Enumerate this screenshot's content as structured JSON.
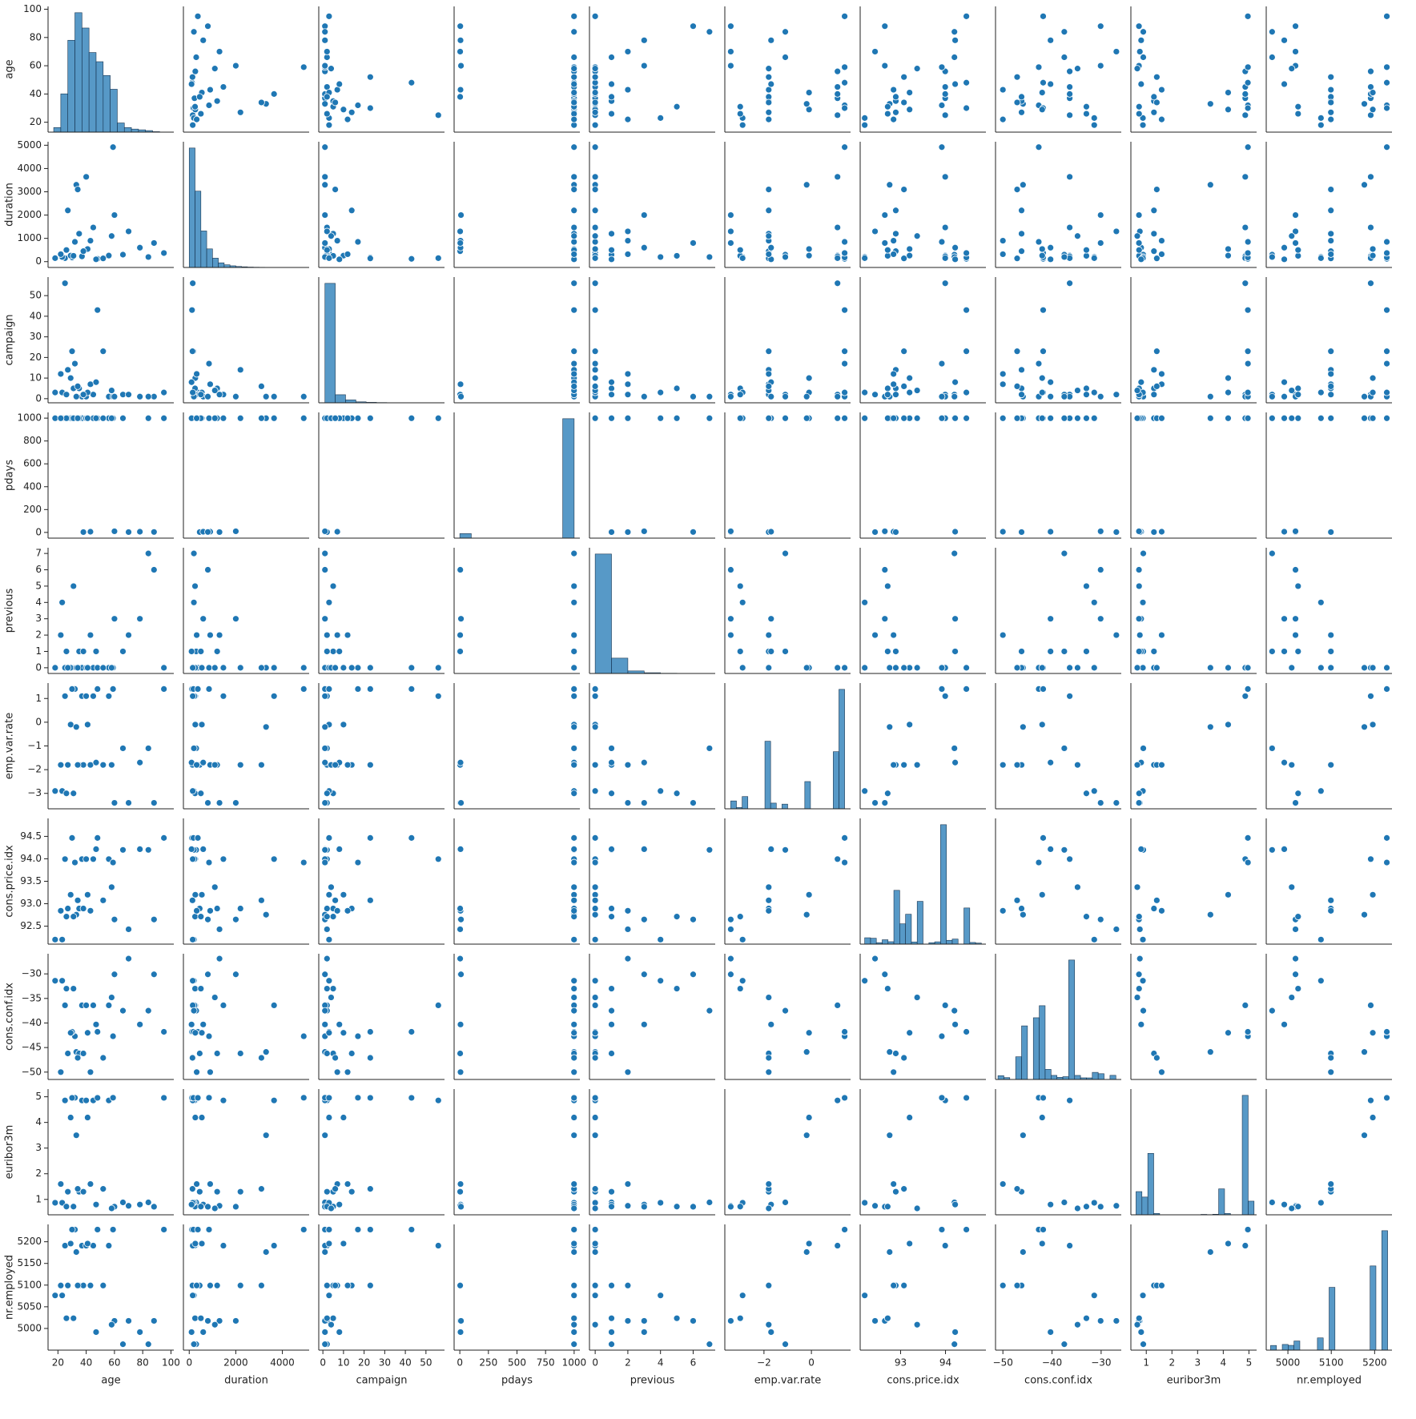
{
  "chart_data": {
    "type": "pairplot",
    "color": "#1f77b4",
    "variables": [
      {
        "name": "age",
        "lim": [
          13,
          102
        ],
        "xticks": [
          20,
          40,
          60,
          80,
          100
        ],
        "yticks": [
          20,
          40,
          60,
          80,
          100
        ],
        "hist": {
          "bins": [
            17,
            22,
            27,
            32,
            37,
            42,
            47,
            52,
            57,
            62,
            67,
            72,
            77,
            82,
            87,
            92,
            98
          ],
          "counts": [
            300,
            2500,
            6000,
            7800,
            6800,
            5200,
            4600,
            3700,
            2800,
            600,
            300,
            200,
            150,
            100,
            30,
            10
          ]
        }
      },
      {
        "name": "duration",
        "lim": [
          -250,
          5150
        ],
        "xticks": [
          0,
          2000,
          4000
        ],
        "yticks": [
          0,
          1000,
          2000,
          3000,
          4000,
          5000
        ],
        "hist": {
          "bins": [
            0,
            250,
            500,
            750,
            1000,
            1250,
            1500,
            1750,
            2000,
            2250,
            2500,
            2750,
            3000,
            3250,
            3500,
            3750,
            4000,
            4250,
            4500,
            4750,
            5000
          ],
          "counts": [
            18000,
            11500,
            5500,
            2800,
            1400,
            700,
            400,
            250,
            150,
            100,
            60,
            40,
            30,
            20,
            15,
            10,
            5,
            3,
            2,
            1
          ]
        }
      },
      {
        "name": "campaign",
        "lim": [
          -2,
          59
        ],
        "xticks": [
          0,
          10,
          20,
          30,
          40,
          50
        ],
        "yticks": [
          0,
          10,
          20,
          30,
          40,
          50
        ],
        "hist": {
          "bins": [
            1,
            6,
            11,
            16,
            21,
            26,
            31,
            36,
            41,
            46,
            51,
            56
          ],
          "counts": [
            37000,
            2500,
            900,
            300,
            150,
            80,
            40,
            10,
            5,
            3,
            2
          ]
        }
      },
      {
        "name": "pdays",
        "lim": [
          -50,
          1050
        ],
        "xticks": [
          0,
          250,
          500,
          750,
          1000
        ],
        "yticks": [
          0,
          200,
          400,
          600,
          800,
          1000
        ],
        "hist": {
          "bins": [
            0,
            100,
            200,
            300,
            400,
            500,
            600,
            700,
            800,
            900,
            1000
          ],
          "counts": [
            1500,
            0,
            0,
            0,
            0,
            0,
            0,
            0,
            0,
            39673
          ]
        }
      },
      {
        "name": "previous",
        "lim": [
          -0.35,
          7.35
        ],
        "xticks": [
          0,
          2,
          4,
          6
        ],
        "yticks": [
          0,
          1,
          2,
          3,
          4,
          5,
          6,
          7
        ],
        "hist": {
          "bins": [
            0,
            1,
            2,
            3,
            4,
            5,
            6,
            7
          ],
          "counts": [
            35563,
            4561,
            754,
            216,
            70,
            18,
            6
          ]
        }
      },
      {
        "name": "emp.var.rate",
        "lim": [
          -3.65,
          1.65
        ],
        "xticks": [
          {
            "value": -2,
            "label": "−2"
          },
          0
        ],
        "yticks": [
          {
            "value": -3,
            "label": "−3"
          },
          {
            "value": -2,
            "label": "−2"
          },
          {
            "value": -1,
            "label": "−1"
          },
          0,
          1
        ],
        "hist": {
          "bins": [
            -3.4,
            -3.16,
            -2.92,
            -2.68,
            -2.44,
            -2.2,
            -1.96,
            -1.72,
            -1.48,
            -1.24,
            -1.0,
            -0.76,
            -0.52,
            -0.28,
            -0.04,
            0.2,
            0.44,
            0.68,
            0.92,
            1.16,
            1.4
          ],
          "counts": [
            1071,
            172,
            1663,
            0,
            0,
            0,
            9184,
            773,
            0,
            635,
            0,
            0,
            0,
            3703,
            0,
            0,
            0,
            0,
            7763,
            16234
          ]
        }
      },
      {
        "name": "cons.price.idx",
        "lim": [
          92.1,
          94.9
        ],
        "xticks": [
          93,
          94
        ],
        "yticks": [
          92.5,
          {
            "value": 93,
            "label": "93.0"
          },
          93.5,
          {
            "value": 94,
            "label": "94.0"
          },
          94.5
        ],
        "hist": {
          "bins": [
            92.2,
            92.33,
            92.46,
            92.59,
            92.72,
            92.85,
            92.98,
            93.11,
            93.24,
            93.37,
            93.5,
            93.63,
            93.76,
            93.89,
            94.02,
            94.15,
            94.28,
            94.41,
            94.54,
            94.67,
            94.8
          ],
          "counts": [
            770,
            714,
            178,
            529,
            292,
            6509,
            2458,
            3616,
            264,
            5175,
            0,
            174,
            279,
            14448,
            462,
            614,
            0,
            4374,
            204,
            128
          ]
        }
      },
      {
        "name": "cons.conf.idx",
        "lim": [
          -51.5,
          -25.9
        ],
        "xticks": [
          {
            "value": -50,
            "label": "−50"
          },
          {
            "value": -40,
            "label": "−40"
          },
          {
            "value": -30,
            "label": "−30"
          }
        ],
        "yticks": [
          {
            "value": -50,
            "label": "−50"
          },
          {
            "value": -45,
            "label": "−45"
          },
          {
            "value": -40,
            "label": "−40"
          },
          {
            "value": -35,
            "label": "−35"
          },
          {
            "value": -30,
            "label": "−30"
          }
        ],
        "hist": {
          "bins": [
            -51,
            -49.8,
            -48.6,
            -47.4,
            -46.2,
            -45,
            -43.8,
            -42.6,
            -41.4,
            -40.2,
            -39,
            -37.8,
            -36.6,
            -35.4,
            -34.2,
            -33,
            -31.8,
            -30.6,
            -29.4,
            -28.2,
            -27
          ],
          "counts": [
            410,
            204,
            0,
            2458,
            5804,
            0,
            6685,
            7990,
            1093,
            441,
            233,
            303,
            12938,
            438,
            178,
            172,
            770,
            624,
            0,
            447
          ]
        }
      },
      {
        "name": "euribor3m",
        "lim": [
          0.4,
          5.3
        ],
        "xticks": [
          1,
          2,
          3,
          4,
          5
        ],
        "yticks": [
          1,
          2,
          3,
          4,
          5
        ],
        "hist": {
          "bins": [
            0.6,
            0.83,
            1.06,
            1.29,
            1.52,
            1.75,
            1.98,
            2.21,
            2.44,
            2.67,
            2.9,
            3.13,
            3.36,
            3.59,
            3.82,
            4.05,
            4.28,
            4.51,
            4.74,
            4.97,
            5.2
          ],
          "counts": [
            3400,
            2600,
            9000,
            200,
            0,
            0,
            0,
            0,
            0,
            0,
            0,
            60,
            30,
            80,
            3800,
            200,
            0,
            0,
            17500,
            2000
          ]
        }
      },
      {
        "name": "nr.employed",
        "lim": [
          4950,
          5240
        ],
        "xticks": [
          5000,
          5100,
          5200
        ],
        "yticks": [
          5000,
          5050,
          5100,
          5150,
          5200
        ],
        "hist": {
          "bins": [
            4960,
            4973.5,
            4987,
            5000.5,
            5014,
            5027.5,
            5041,
            5054.5,
            5068,
            5081.5,
            5095,
            5108.5,
            5122,
            5135.5,
            5149,
            5162.5,
            5176,
            5189.5,
            5203,
            5216.5,
            5230
          ],
          "counts": [
            635,
            0,
            773,
            650,
            1243,
            0,
            0,
            0,
            1663,
            0,
            8534,
            0,
            0,
            0,
            0,
            0,
            10,
            11446,
            0,
            16234
          ]
        }
      }
    ],
    "rows": [
      [
        56,
        261,
        1,
        999,
        0,
        1.1,
        93.994,
        -36.4,
        4.857,
        5191
      ],
      [
        37,
        226,
        1,
        999,
        0,
        1.1,
        93.994,
        -36.4,
        4.857,
        5191
      ],
      [
        45,
        1467,
        2,
        999,
        0,
        1.1,
        93.994,
        -36.4,
        4.857,
        5191
      ],
      [
        40,
        3643,
        1,
        999,
        0,
        1.1,
        93.994,
        -36.4,
        4.857,
        5191
      ],
      [
        25,
        151,
        56,
        999,
        0,
        1.1,
        93.994,
        -36.4,
        4.857,
        5191
      ],
      [
        59,
        4918,
        1,
        999,
        0,
        1.4,
        93.918,
        -42.7,
        4.962,
        5228.1
      ],
      [
        32,
        850,
        17,
        999,
        0,
        1.4,
        93.918,
        -42.7,
        4.962,
        5228.1
      ],
      [
        48,
        120,
        43,
        999,
        0,
        1.4,
        94.465,
        -41.8,
        4.959,
        5228.1
      ],
      [
        30,
        180,
        23,
        999,
        0,
        1.4,
        94.465,
        -41.8,
        4.959,
        5228.1
      ],
      [
        95,
        370,
        3,
        999,
        0,
        1.4,
        94.465,
        -41.8,
        4.959,
        5228.1
      ],
      [
        41,
        542,
        3,
        999,
        0,
        -0.1,
        93.2,
        -42,
        4.191,
        5195.8
      ],
      [
        29,
        260,
        10,
        999,
        0,
        -0.1,
        93.2,
        -42,
        4.191,
        5195.8
      ],
      [
        33,
        3300,
        1,
        999,
        0,
        -0.2,
        92.756,
        -45.9,
        3.5,
        5176.3
      ],
      [
        35,
        1200,
        5,
        999,
        1,
        -1.8,
        92.893,
        -46.2,
        1.299,
        5099.1
      ],
      [
        27,
        2200,
        14,
        999,
        0,
        -1.8,
        92.893,
        -46.2,
        1.299,
        5099.1
      ],
      [
        52,
        140,
        23,
        999,
        0,
        -1.8,
        93.075,
        -47.1,
        1.41,
        5099.1
      ],
      [
        43,
        900,
        7,
        6,
        2,
        -1.8,
        92.843,
        -50,
        1.6,
        5099.1
      ],
      [
        38,
        450,
        2,
        3,
        1,
        -1.8,
        92.893,
        -46.2,
        1.299,
        5099.1
      ],
      [
        66,
        300,
        2,
        999,
        1,
        -1.1,
        94.199,
        -37.5,
        0.884,
        4963.6
      ],
      [
        78,
        600,
        1,
        6,
        3,
        -1.7,
        94.215,
        -40.3,
        0.8,
        4991.6
      ],
      [
        23,
        200,
        3,
        999,
        4,
        -2.9,
        92.201,
        -31.4,
        0.869,
        5076.2
      ],
      [
        88,
        800,
        1,
        4,
        6,
        -3.4,
        92.649,
        -30.1,
        0.715,
        5017.5
      ],
      [
        70,
        1300,
        2,
        3,
        2,
        -3.4,
        92.431,
        -26.9,
        0.75,
        5017.5
      ],
      [
        31,
        250,
        5,
        999,
        5,
        -3,
        92.713,
        -33,
        0.72,
        5023.5
      ],
      [
        84,
        200,
        1,
        999,
        7,
        -1.1,
        94.199,
        -37.5,
        0.884,
        4963.6
      ],
      [
        18,
        150,
        3,
        999,
        0,
        -2.9,
        92.201,
        -31.4,
        0.869,
        5076.2
      ],
      [
        60,
        2000,
        1,
        10,
        3,
        -3.4,
        92.649,
        -30.1,
        0.715,
        5017.5
      ],
      [
        47,
        100,
        8,
        999,
        1,
        -1.7,
        94.215,
        -40.3,
        0.8,
        4991.6
      ],
      [
        26,
        500,
        2,
        999,
        1,
        -3,
        92.713,
        -33,
        0.72,
        5023.5
      ],
      [
        58,
        1100,
        4,
        999,
        0,
        -1.8,
        93.369,
        -34.8,
        0.65,
        5008.7
      ],
      [
        34,
        3100,
        6,
        999,
        0,
        -1.8,
        93.075,
        -47.1,
        1.41,
        5099.1
      ],
      [
        22,
        320,
        12,
        999,
        2,
        -1.8,
        92.843,
        -50,
        1.6,
        5099.1
      ]
    ]
  }
}
